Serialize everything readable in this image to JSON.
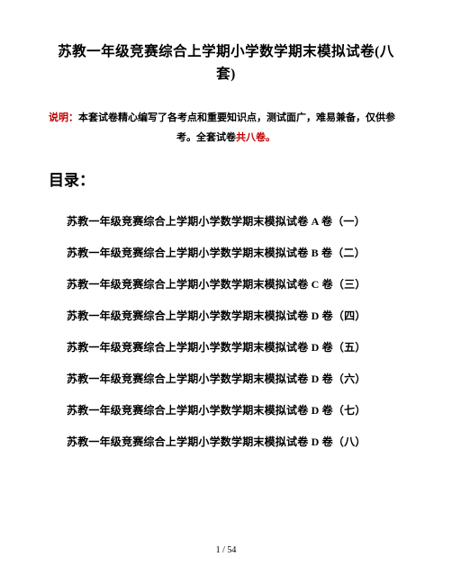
{
  "title": "苏教一年级竞赛综合上学期小学数学期末模拟试卷(八套)",
  "note": {
    "label": "说明：",
    "body_pre": "本套试卷精心编写了各考点和重要知识点，测试面广，难易兼备，仅供参考。全套试卷",
    "red_part": "共八卷。"
  },
  "toc_heading": "目录：",
  "toc_items": [
    "苏教一年级竞赛综合上学期小学数学期末模拟试卷 A 卷（一）",
    "苏教一年级竞赛综合上学期小学数学期末模拟试卷 B 卷（二）",
    "苏教一年级竞赛综合上学期小学数学期末模拟试卷 C 卷（三）",
    "苏教一年级竞赛综合上学期小学数学期末模拟试卷 D 卷（四）",
    "苏教一年级竞赛综合上学期小学数学期末模拟试卷 D 卷（五）",
    "苏教一年级竞赛综合上学期小学数学期末模拟试卷 D 卷（六）",
    "苏教一年级竞赛综合上学期小学数学期末模拟试卷 D 卷（七）",
    "苏教一年级竞赛综合上学期小学数学期末模拟试卷 D 卷（八）"
  ],
  "pager": "1 / 54"
}
